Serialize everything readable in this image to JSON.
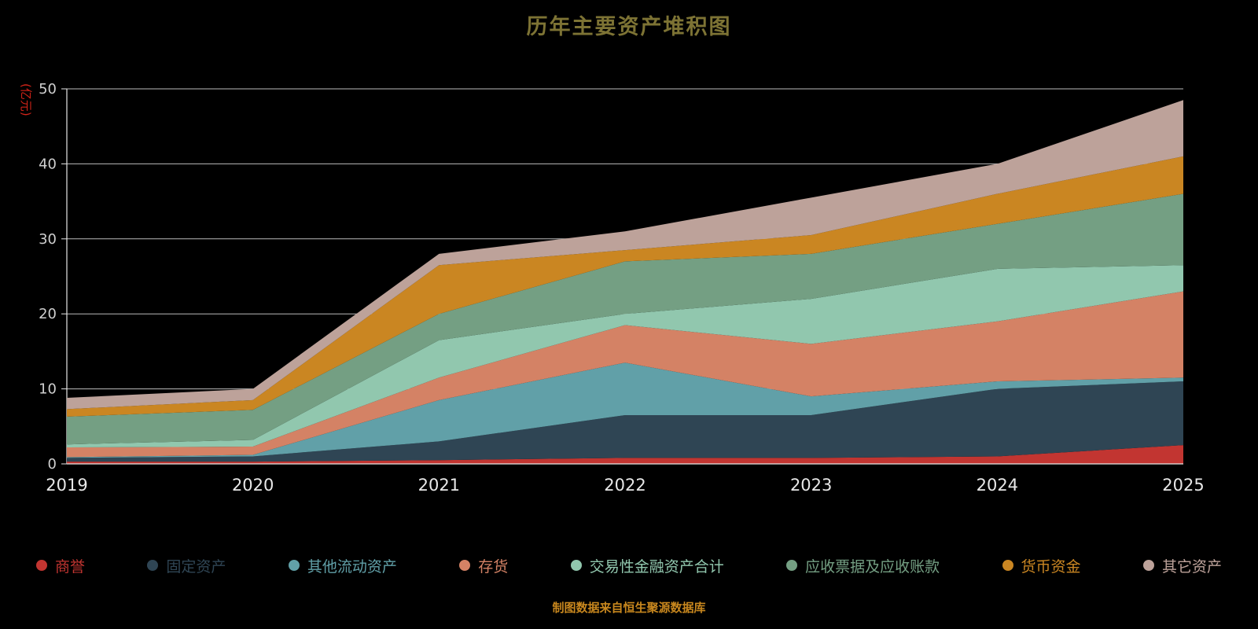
{
  "title": "历年主要资产堆积图",
  "y_axis_unit": "(亿元)",
  "footer": "制图数据来自恒生聚源数据库",
  "colors": {
    "background": "#000000",
    "title": "#7d7334",
    "unit_label": "#d02318",
    "footer": "#c8871e",
    "gridline": "#d0d0d0",
    "axis": "#e6e6e6",
    "y_label": "#cfcfcf",
    "x_label": "#e8e8e8"
  },
  "chart_data": {
    "type": "area",
    "stacked": true,
    "title": "历年主要资产堆积图",
    "xlabel": "",
    "ylabel": "(亿元)",
    "x": [
      2019,
      2020,
      2021,
      2022,
      2023,
      2024,
      2025
    ],
    "ylim": [
      0,
      50
    ],
    "yticks": [
      0,
      10,
      20,
      30,
      40,
      50
    ],
    "grid": true,
    "legend_position": "bottom",
    "series": [
      {
        "name": "商誉",
        "color": "#c23531",
        "values": [
          0.3,
          0.3,
          0.5,
          0.8,
          0.8,
          1.0,
          2.5
        ]
      },
      {
        "name": "固定资产",
        "color": "#2f4554",
        "values": [
          0.5,
          0.7,
          2.5,
          5.7,
          5.7,
          9.0,
          8.5
        ]
      },
      {
        "name": "其他流动资产",
        "color": "#61a0a8",
        "values": [
          0.1,
          0.2,
          5.5,
          7.0,
          2.5,
          1.0,
          0.5
        ]
      },
      {
        "name": "存货",
        "color": "#d48265",
        "values": [
          1.3,
          1.1,
          3.0,
          5.0,
          7.0,
          8.0,
          11.5
        ]
      },
      {
        "name": "交易性金融资产合计",
        "color": "#91c7ae",
        "values": [
          0.4,
          0.9,
          5.0,
          1.5,
          6.0,
          7.0,
          3.5
        ]
      },
      {
        "name": "应收票据及应收账款",
        "color": "#749f83",
        "values": [
          3.7,
          4.0,
          3.5,
          7.0,
          6.0,
          6.0,
          9.5
        ]
      },
      {
        "name": "货币资金",
        "color": "#ca8622",
        "values": [
          1.0,
          1.3,
          6.5,
          1.5,
          2.5,
          4.0,
          5.0
        ]
      },
      {
        "name": "其它资产",
        "color": "#bda29a",
        "values": [
          1.5,
          1.5,
          1.5,
          2.5,
          5.0,
          4.0,
          7.5
        ]
      }
    ]
  }
}
